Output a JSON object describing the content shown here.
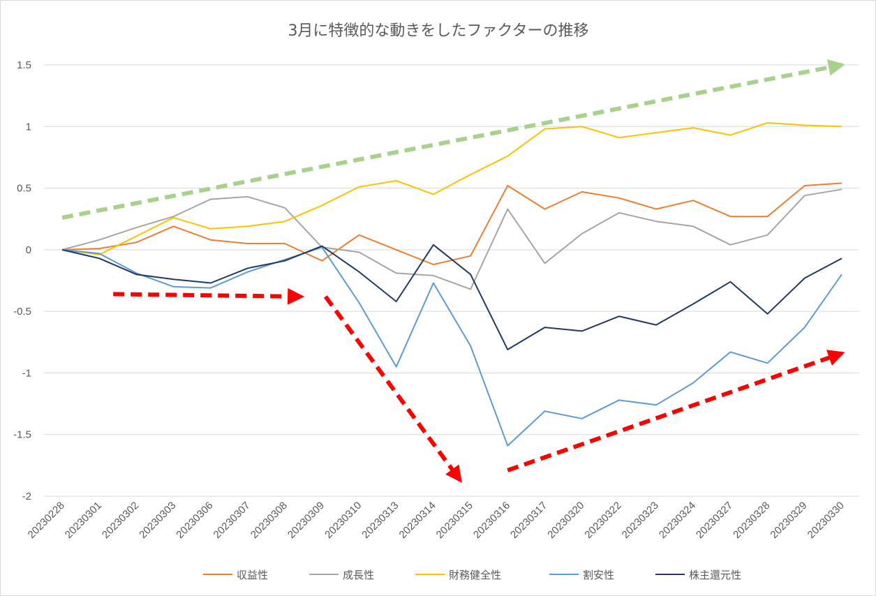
{
  "chart_data": {
    "type": "line",
    "title": "3月に特徴的な動きをしたファクターの推移",
    "xlabel": "",
    "ylabel": "",
    "ylim": [
      -2,
      1.5
    ],
    "yticks": [
      "1.5",
      "1",
      "0.5",
      "0",
      "-0.5",
      "-1",
      "-1.5",
      "-2"
    ],
    "grid": true,
    "legend_position": "bottom",
    "categories": [
      "20230228",
      "20230301",
      "20230302",
      "20230303",
      "20230306",
      "20230307",
      "20230308",
      "20230309",
      "20230310",
      "20230313",
      "20230314",
      "20230315",
      "20230316",
      "20230317",
      "20230320",
      "20230322",
      "20230323",
      "20230324",
      "20230327",
      "20230328",
      "20230329",
      "20230330"
    ],
    "series": [
      {
        "name": "収益性",
        "color": "#ED7D31",
        "values": [
          0,
          0.01,
          0.06,
          0.19,
          0.08,
          0.05,
          0.05,
          -0.09,
          0.12,
          0.0,
          -0.12,
          -0.05,
          0.52,
          0.33,
          0.47,
          0.42,
          0.33,
          0.4,
          0.27,
          0.27,
          0.52,
          0.54
        ]
      },
      {
        "name": "成長性",
        "color": "#A5A5A5",
        "values": [
          0,
          0.08,
          0.18,
          0.27,
          0.41,
          0.43,
          0.34,
          0.02,
          -0.02,
          -0.19,
          -0.21,
          -0.32,
          0.33,
          -0.11,
          0.13,
          0.3,
          0.23,
          0.19,
          0.04,
          0.12,
          0.44,
          0.49
        ]
      },
      {
        "name": "財務健全性",
        "color": "#FFC000",
        "values": [
          0,
          -0.04,
          0.11,
          0.26,
          0.17,
          0.19,
          0.23,
          0.36,
          0.51,
          0.56,
          0.45,
          0.61,
          0.76,
          0.98,
          1.0,
          0.91,
          0.95,
          0.99,
          0.93,
          1.03,
          1.01,
          1.0
        ]
      },
      {
        "name": "割安性",
        "color": "#5B9BD5",
        "values": [
          0,
          -0.03,
          -0.19,
          -0.3,
          -0.31,
          -0.18,
          -0.08,
          0.02,
          -0.43,
          -0.95,
          -0.27,
          -0.78,
          -1.59,
          -1.31,
          -1.37,
          -1.22,
          -1.26,
          -1.08,
          -0.83,
          -0.92,
          -0.63,
          -0.2
        ]
      },
      {
        "name": "株主還元性",
        "color": "#1F3864",
        "values": [
          0,
          -0.07,
          -0.2,
          -0.24,
          -0.27,
          -0.15,
          -0.09,
          0.03,
          -0.18,
          -0.42,
          0.04,
          -0.2,
          -0.81,
          -0.63,
          -0.66,
          -0.54,
          -0.61,
          -0.44,
          -0.26,
          -0.52,
          -0.23,
          -0.07
        ]
      }
    ],
    "annotations": [
      {
        "type": "dashed-arrow",
        "color": "#A9D18E",
        "from": {
          "x": "20230228",
          "y": 0.26
        },
        "to": {
          "x": "20230330",
          "y": 1.5
        }
      },
      {
        "type": "dashed-arrow",
        "color": "#FF0000",
        "from": {
          "x": "20230301",
          "y": -0.36
        },
        "to": {
          "x": "20230309",
          "y": -0.38
        }
      },
      {
        "type": "dashed-arrow",
        "color": "#FF0000",
        "from": {
          "x": "20230309",
          "y": -0.38
        },
        "to": {
          "x": "20230315",
          "y": -1.87
        }
      },
      {
        "type": "dashed-arrow",
        "color": "#FF0000",
        "from": {
          "x": "20230316",
          "y": -1.79
        },
        "to": {
          "x": "20230330",
          "y": -0.84
        }
      }
    ]
  }
}
